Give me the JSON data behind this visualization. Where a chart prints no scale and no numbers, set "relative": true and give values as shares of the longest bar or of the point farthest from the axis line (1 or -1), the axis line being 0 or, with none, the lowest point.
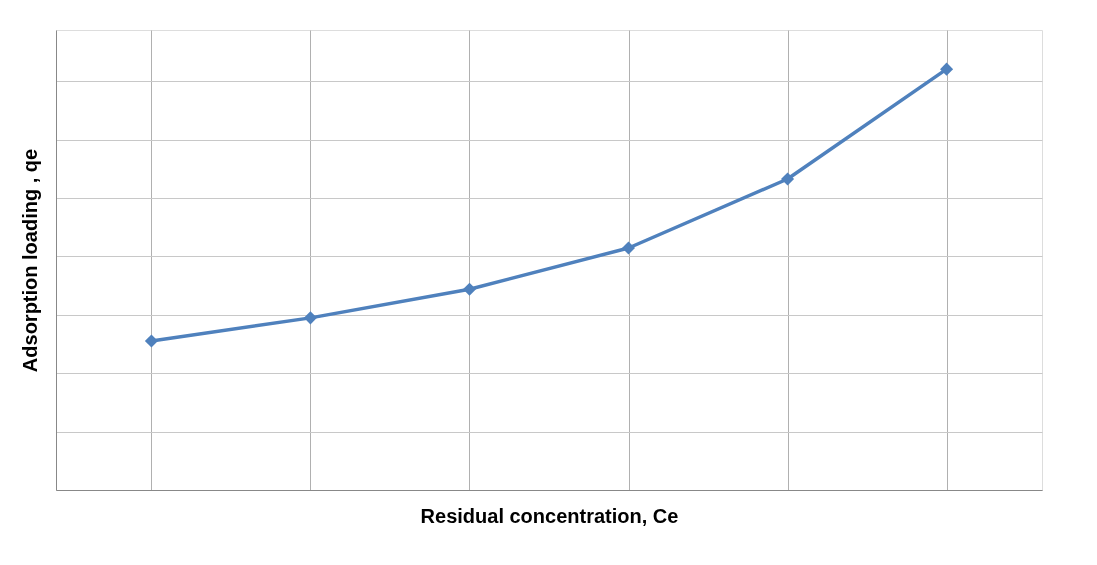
{
  "chart_data": {
    "type": "line",
    "xlabel": "Residual concentration, Ce",
    "ylabel": "Adsorption loading , qe",
    "relative": true,
    "tick_labels": false,
    "grid": true,
    "marker": "diamond",
    "line_style": "solid",
    "categories": [
      null,
      null,
      null,
      null,
      null,
      null
    ],
    "series": [
      {
        "color": "#4f81bd",
        "values": [
          0.354,
          0.409,
          0.477,
          0.575,
          0.739,
          1
        ]
      }
    ]
  }
}
